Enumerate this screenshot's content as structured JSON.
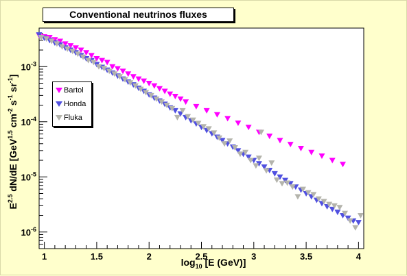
{
  "colors": {
    "bartol": "#ff00ff",
    "honda": "#5050e0",
    "fluka": "#b4b4ac",
    "background": "#ffffcc"
  },
  "chart_data": {
    "type": "scatter",
    "title": "Conventional neutrinos fluxes",
    "xlabel": {
      "base": "log",
      "sub": "10",
      "rest": " [E (GeV)]"
    },
    "ylabel": {
      "p1": "E",
      "s1": "2.5",
      "p2": " dN/dE [GeV",
      "s2": "1.5",
      "p3": " cm",
      "s3": "-2",
      "p4": " s",
      "s4": "-1",
      "p5": " sr",
      "s5": "-1",
      "p6": "]"
    },
    "xlim": [
      0.95,
      4.05
    ],
    "ylim": [
      5e-07,
      0.005
    ],
    "y_scale": "log",
    "x_ticks": [
      1,
      1.5,
      2,
      2.5,
      3,
      3.5,
      4
    ],
    "x_tick_labels": [
      "1",
      "1.5",
      "2",
      "2.5",
      "3",
      "3.5",
      "4"
    ],
    "y_ticks": [
      {
        "mant": "10",
        "exp": "-3",
        "value": 0.001
      },
      {
        "mant": "10",
        "exp": "-4",
        "value": 0.0001
      },
      {
        "mant": "10",
        "exp": "-5",
        "value": 1e-05
      },
      {
        "mant": "10",
        "exp": "-6",
        "value": 1e-06
      }
    ],
    "legend_position": "left",
    "marker": "triangle-down",
    "series": [
      {
        "name": "Bartol",
        "color": "#ff00ff",
        "points": [
          [
            0.95,
            0.0037
          ],
          [
            1.0,
            0.0035
          ],
          [
            1.05,
            0.0034
          ],
          [
            1.1,
            0.0031
          ],
          [
            1.15,
            0.0029
          ],
          [
            1.2,
            0.0026
          ],
          [
            1.25,
            0.0024
          ],
          [
            1.3,
            0.0022
          ],
          [
            1.35,
            0.002
          ],
          [
            1.4,
            0.0018
          ],
          [
            1.45,
            0.0016
          ],
          [
            1.5,
            0.0014
          ],
          [
            1.55,
            0.0013
          ],
          [
            1.6,
            0.0012
          ],
          [
            1.65,
            0.001
          ],
          [
            1.7,
            0.00092
          ],
          [
            1.75,
            0.00083
          ],
          [
            1.8,
            0.00074
          ],
          [
            1.85,
            0.00066
          ],
          [
            1.9,
            0.0006
          ],
          [
            1.95,
            0.00055
          ],
          [
            2.0,
            0.0005
          ],
          [
            2.05,
            0.00045
          ],
          [
            2.1,
            0.0004
          ],
          [
            2.15,
            0.00036
          ],
          [
            2.2,
            0.00032
          ],
          [
            2.25,
            0.00029
          ],
          [
            2.3,
            0.00026
          ],
          [
            2.35,
            0.00023
          ],
          [
            2.45,
            0.00019
          ],
          [
            2.55,
            0.00016
          ],
          [
            2.65,
            0.000135
          ],
          [
            2.75,
            0.000115
          ],
          [
            2.85,
            9.5e-05
          ],
          [
            2.95,
            8e-05
          ],
          [
            3.05,
            6.5e-05
          ],
          [
            3.15,
            5.5e-05
          ],
          [
            3.25,
            4.6e-05
          ],
          [
            3.35,
            3.9e-05
          ],
          [
            3.45,
            3.3e-05
          ],
          [
            3.55,
            2.8e-05
          ],
          [
            3.65,
            2.4e-05
          ],
          [
            3.75,
            2e-05
          ],
          [
            3.85,
            1.7e-05
          ]
        ]
      },
      {
        "name": "Honda",
        "color": "#5050e0",
        "points": [
          [
            0.95,
            0.0038
          ],
          [
            1.0,
            0.0033
          ],
          [
            1.05,
            0.003
          ],
          [
            1.1,
            0.0027
          ],
          [
            1.15,
            0.0025
          ],
          [
            1.2,
            0.0022
          ],
          [
            1.25,
            0.002
          ],
          [
            1.3,
            0.0018
          ],
          [
            1.35,
            0.0016
          ],
          [
            1.4,
            0.0014
          ],
          [
            1.45,
            0.0013
          ],
          [
            1.5,
            0.0011
          ],
          [
            1.55,
            0.00098
          ],
          [
            1.6,
            0.00087
          ],
          [
            1.65,
            0.00077
          ],
          [
            1.7,
            0.00068
          ],
          [
            1.75,
            0.0006
          ],
          [
            1.8,
            0.00053
          ],
          [
            1.85,
            0.00047
          ],
          [
            1.9,
            0.00041
          ],
          [
            1.95,
            0.00036
          ],
          [
            2.0,
            0.00031
          ],
          [
            2.05,
            0.00027
          ],
          [
            2.1,
            0.00024
          ],
          [
            2.15,
            0.00021
          ],
          [
            2.2,
            0.00018
          ],
          [
            2.25,
            0.00016
          ],
          [
            2.3,
            0.00014
          ],
          [
            2.35,
            0.00012
          ],
          [
            2.4,
            0.000105
          ],
          [
            2.45,
            9.2e-05
          ],
          [
            2.5,
            8e-05
          ],
          [
            2.55,
            7e-05
          ],
          [
            2.6,
            6.1e-05
          ],
          [
            2.65,
            5.3e-05
          ],
          [
            2.7,
            4.6e-05
          ],
          [
            2.75,
            4e-05
          ],
          [
            2.8,
            3.5e-05
          ],
          [
            2.85,
            3e-05
          ],
          [
            2.9,
            2.6e-05
          ],
          [
            2.95,
            2.3e-05
          ],
          [
            3.0,
            2e-05
          ],
          [
            3.05,
            1.75e-05
          ],
          [
            3.1,
            1.52e-05
          ],
          [
            3.15,
            1.32e-05
          ],
          [
            3.2,
            1.15e-05
          ],
          [
            3.25,
            1e-05
          ],
          [
            3.3,
            8.7e-06
          ],
          [
            3.35,
            7.6e-06
          ],
          [
            3.4,
            6.6e-06
          ],
          [
            3.45,
            5.8e-06
          ],
          [
            3.5,
            5e-06
          ],
          [
            3.55,
            4.4e-06
          ],
          [
            3.6,
            3.8e-06
          ],
          [
            3.65,
            3.3e-06
          ],
          [
            3.7,
            2.9e-06
          ],
          [
            3.75,
            2.6e-06
          ],
          [
            3.8,
            2.3e-06
          ],
          [
            3.85,
            2e-06
          ],
          [
            3.9,
            1.8e-06
          ],
          [
            3.95,
            1.6e-06
          ],
          [
            4.0,
            1.5e-06
          ]
        ]
      },
      {
        "name": "Fluka",
        "color": "#b4b4ac",
        "points": [
          [
            0.97,
            0.0034
          ],
          [
            1.02,
            0.0032
          ],
          [
            1.07,
            0.0029
          ],
          [
            1.12,
            0.0026
          ],
          [
            1.17,
            0.0023
          ],
          [
            1.22,
            0.0021
          ],
          [
            1.27,
            0.0019
          ],
          [
            1.32,
            0.0017
          ],
          [
            1.37,
            0.0015
          ],
          [
            1.42,
            0.0013
          ],
          [
            1.47,
            0.0012
          ],
          [
            1.52,
            0.001
          ],
          [
            1.57,
            0.00093
          ],
          [
            1.62,
            0.00083
          ],
          [
            1.67,
            0.00074
          ],
          [
            1.72,
            0.00066
          ],
          [
            1.77,
            0.00058
          ],
          [
            1.82,
            0.00051
          ],
          [
            1.87,
            0.00045
          ],
          [
            1.92,
            0.00039
          ],
          [
            1.97,
            0.00034
          ],
          [
            2.02,
            0.0003
          ],
          [
            2.07,
            0.00026
          ],
          [
            2.12,
            0.00023
          ],
          [
            2.17,
            0.0002
          ],
          [
            2.22,
            0.000175
          ],
          [
            2.27,
            0.00012
          ],
          [
            2.32,
            0.00016
          ],
          [
            2.37,
            0.000125
          ],
          [
            2.42,
            0.000108
          ],
          [
            2.47,
            9.4e-05
          ],
          [
            2.52,
            8.2e-05
          ],
          [
            2.57,
            7.5e-05
          ],
          [
            2.62,
            6.3e-05
          ],
          [
            2.67,
            5.1e-05
          ],
          [
            2.72,
            4e-05
          ],
          [
            2.77,
            4.5e-05
          ],
          [
            2.82,
            3.4e-05
          ],
          [
            2.87,
            2.6e-05
          ],
          [
            2.92,
            2.8e-05
          ],
          [
            2.97,
            2e-05
          ],
          [
            3.02,
            1.6e-05
          ],
          [
            3.05,
            2.2e-05
          ],
          [
            3.07,
            6.5e-05
          ],
          [
            3.12,
            1.3e-05
          ],
          [
            3.17,
            1.8e-05
          ],
          [
            3.22,
            8.8e-06
          ],
          [
            3.27,
            7.6e-06
          ],
          [
            3.32,
            7.8e-06
          ],
          [
            3.37,
            6.6e-06
          ],
          [
            3.42,
            4.4e-06
          ],
          [
            3.47,
            6e-06
          ],
          [
            3.52,
            5.2e-06
          ],
          [
            3.57,
            4.8e-06
          ],
          [
            3.62,
            4e-06
          ],
          [
            3.67,
            3.6e-06
          ],
          [
            3.72,
            3.2e-06
          ],
          [
            3.77,
            3e-06
          ],
          [
            3.82,
            2.8e-06
          ],
          [
            3.87,
            2.2e-06
          ],
          [
            3.92,
            1.6e-06
          ],
          [
            3.97,
            1.2e-06
          ],
          [
            4.02,
            2e-06
          ]
        ]
      }
    ]
  }
}
